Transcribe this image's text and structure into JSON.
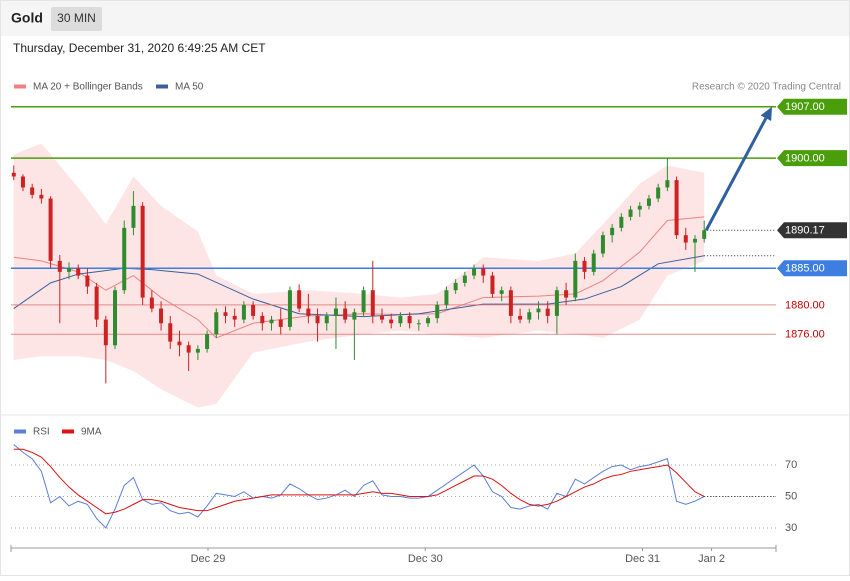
{
  "header": {
    "title": "Gold",
    "timeframe": "30 MIN",
    "timestamp": "Thursday, December 31, 2020 6:49:25 AM CET"
  },
  "chart_data": [
    {
      "type": "candlestick",
      "credit": "Research © 2020 Trading Central",
      "up_color": "#2e8b2e",
      "down_color": "#cc2222",
      "xlim": [
        -0.3,
        82.8
      ],
      "ylim": [
        1865,
        1908.6
      ],
      "candles": [
        [
          1898.0,
          1899.0,
          1897.0,
          1897.5
        ],
        [
          1897.5,
          1897.8,
          1895.5,
          1896.0
        ],
        [
          1896.0,
          1896.5,
          1894.5,
          1895.0
        ],
        [
          1895.0,
          1895.8,
          1893.8,
          1894.5
        ],
        [
          1894.5,
          1894.8,
          1885.0,
          1886.0
        ],
        [
          1886.0,
          1886.8,
          1877.5,
          1884.5
        ],
        [
          1884.5,
          1885.8,
          1883.5,
          1885.0
        ],
        [
          1885.0,
          1885.5,
          1883.5,
          1884.0
        ],
        [
          1884.0,
          1885.0,
          1881.5,
          1882.5
        ],
        [
          1882.5,
          1883.0,
          1877.0,
          1878.0
        ],
        [
          1878.0,
          1878.5,
          1869.3,
          1874.5
        ],
        [
          1874.5,
          1882.5,
          1874.0,
          1882.0
        ],
        [
          1882.0,
          1891.5,
          1881.5,
          1890.5
        ],
        [
          1890.5,
          1895.5,
          1889.5,
          1893.5
        ],
        [
          1893.5,
          1894.0,
          1880.0,
          1881.0
        ],
        [
          1881.0,
          1882.0,
          1879.0,
          1879.5
        ],
        [
          1879.5,
          1880.5,
          1876.5,
          1877.5
        ],
        [
          1877.5,
          1878.5,
          1874.0,
          1875.0
        ],
        [
          1875.0,
          1876.5,
          1873.0,
          1874.5
        ],
        [
          1874.5,
          1875.0,
          1871.0,
          1873.5
        ],
        [
          1873.5,
          1874.5,
          1872.5,
          1874.0
        ],
        [
          1874.0,
          1876.5,
          1873.5,
          1876.0
        ],
        [
          1876.0,
          1879.5,
          1875.5,
          1879.0
        ],
        [
          1879.0,
          1879.8,
          1877.5,
          1878.5
        ],
        [
          1878.5,
          1879.5,
          1877.0,
          1878.0
        ],
        [
          1878.0,
          1880.5,
          1877.5,
          1880.0
        ],
        [
          1880.0,
          1880.5,
          1878.0,
          1878.5
        ],
        [
          1878.5,
          1879.0,
          1876.5,
          1877.5
        ],
        [
          1877.5,
          1878.5,
          1876.5,
          1878.0
        ],
        [
          1878.0,
          1879.5,
          1876.0,
          1877.0
        ],
        [
          1877.0,
          1882.5,
          1876.5,
          1882.0
        ],
        [
          1882.0,
          1882.8,
          1879.0,
          1879.5
        ],
        [
          1879.5,
          1881.5,
          1877.5,
          1878.5
        ],
        [
          1878.5,
          1879.5,
          1875.0,
          1877.5
        ],
        [
          1877.5,
          1879.0,
          1876.5,
          1878.5
        ],
        [
          1878.5,
          1881.0,
          1874.0,
          1879.5
        ],
        [
          1879.5,
          1880.5,
          1877.5,
          1878.0
        ],
        [
          1878.0,
          1879.5,
          1872.5,
          1879.0
        ],
        [
          1879.0,
          1882.5,
          1878.5,
          1882.0
        ],
        [
          1882.0,
          1886.0,
          1877.5,
          1878.5
        ],
        [
          1878.5,
          1879.5,
          1877.5,
          1878.0
        ],
        [
          1878.0,
          1878.8,
          1876.8,
          1877.5
        ],
        [
          1877.5,
          1879.0,
          1877.0,
          1878.5
        ],
        [
          1878.5,
          1879.0,
          1876.8,
          1877.5
        ],
        [
          1877.5,
          1878.0,
          1876.5,
          1877.5
        ],
        [
          1877.5,
          1878.5,
          1877.0,
          1878.2
        ],
        [
          1878.2,
          1880.5,
          1877.5,
          1880.0
        ],
        [
          1880.0,
          1882.5,
          1879.5,
          1882.0
        ],
        [
          1882.0,
          1883.5,
          1881.5,
          1883.0
        ],
        [
          1883.0,
          1884.5,
          1882.5,
          1884.0
        ],
        [
          1884.0,
          1885.5,
          1883.5,
          1885.0
        ],
        [
          1885.0,
          1885.5,
          1883.0,
          1884.0
        ],
        [
          1884.0,
          1884.5,
          1881.0,
          1881.5
        ],
        [
          1881.5,
          1882.5,
          1880.5,
          1882.0
        ],
        [
          1882.0,
          1882.5,
          1877.5,
          1878.5
        ],
        [
          1878.5,
          1879.5,
          1877.5,
          1878.0
        ],
        [
          1878.0,
          1879.5,
          1877.5,
          1879.0
        ],
        [
          1879.0,
          1880.5,
          1878.0,
          1879.5
        ],
        [
          1879.5,
          1880.5,
          1877.5,
          1878.5
        ],
        [
          1878.5,
          1882.5,
          1876.0,
          1882.0
        ],
        [
          1882.0,
          1883.0,
          1880.0,
          1881.0
        ],
        [
          1881.0,
          1887.0,
          1880.5,
          1886.0
        ],
        [
          1886.0,
          1886.5,
          1883.5,
          1884.5
        ],
        [
          1884.5,
          1887.5,
          1884.0,
          1887.0
        ],
        [
          1887.0,
          1890.0,
          1886.5,
          1889.5
        ],
        [
          1889.5,
          1891.0,
          1888.5,
          1890.5
        ],
        [
          1890.5,
          1892.5,
          1890.0,
          1892.0
        ],
        [
          1892.0,
          1893.5,
          1891.5,
          1893.0
        ],
        [
          1893.0,
          1894.0,
          1892.0,
          1893.5
        ],
        [
          1893.5,
          1895.0,
          1893.0,
          1894.5
        ],
        [
          1894.5,
          1896.5,
          1894.0,
          1896.0
        ],
        [
          1896.0,
          1900.0,
          1895.5,
          1897.0
        ],
        [
          1897.0,
          1897.5,
          1889.0,
          1889.5
        ],
        [
          1889.5,
          1890.5,
          1887.5,
          1888.5
        ],
        [
          1888.5,
          1889.5,
          1884.5,
          1889.0
        ],
        [
          1889.0,
          1891.5,
          1888.5,
          1890.17
        ]
      ],
      "bands": {
        "name": "MA 20 + Bollinger Bands",
        "color": "#f08080",
        "fill": "#fde0e0",
        "x": [
          0,
          3,
          7,
          10,
          13,
          16,
          20,
          22,
          26,
          32,
          38,
          42,
          46,
          51,
          57,
          61,
          64,
          68,
          71,
          75
        ],
        "upper": [
          1900.5,
          1902.0,
          1896.0,
          1891.0,
          1897.5,
          1893.5,
          1890.0,
          1884.0,
          1881.5,
          1882.0,
          1881.5,
          1881.0,
          1881.5,
          1886.5,
          1886.0,
          1887.0,
          1891.0,
          1896.5,
          1899.0,
          1898.0
        ],
        "middle": [
          1886.5,
          1886.0,
          1884.5,
          1882.0,
          1884.0,
          1881.0,
          1878.0,
          1875.5,
          1877.5,
          1878.5,
          1878.8,
          1878.7,
          1878.8,
          1881.0,
          1881.2,
          1881.5,
          1883.3,
          1887.2,
          1891.5,
          1892.0
        ],
        "lower": [
          1872.5,
          1873.0,
          1873.0,
          1872.5,
          1871.0,
          1868.5,
          1866.0,
          1866.5,
          1873.5,
          1875.0,
          1876.0,
          1876.5,
          1876.0,
          1875.5,
          1876.5,
          1876.0,
          1875.5,
          1878.0,
          1884.0,
          1886.0
        ]
      },
      "ma50": {
        "name": "MA 50",
        "color": "#3a5f9f",
        "x": [
          0,
          4,
          7,
          12,
          15,
          20,
          26,
          31,
          38,
          44,
          51,
          58,
          62,
          66,
          70,
          75
        ],
        "values": [
          1879.5,
          1883.0,
          1884.2,
          1885.0,
          1884.8,
          1884.2,
          1880.8,
          1878.8,
          1878.4,
          1878.8,
          1880.1,
          1880.1,
          1880.8,
          1882.5,
          1885.6,
          1886.7
        ]
      },
      "levels": [
        {
          "value": 1907,
          "label": "1907.00",
          "color": "#4a9e0b",
          "line": "solid",
          "style": "box"
        },
        {
          "value": 1900,
          "label": "1900.00",
          "color": "#4a9e0b",
          "line": "solid",
          "style": "box"
        },
        {
          "value": 1890.17,
          "label": "1890.17",
          "color": "#333333",
          "line": "dotted",
          "style": "box"
        },
        {
          "value": 1885,
          "label": "1885.00",
          "color": "#3d7fe0",
          "line": "solid",
          "style": "box"
        },
        {
          "value": 1880,
          "label": "1880.00",
          "color": "#e07070",
          "line": "solid",
          "style": "text"
        },
        {
          "value": 1876,
          "label": "1876.00",
          "color": "#e07070",
          "line": "solid",
          "style": "text"
        }
      ]
    },
    {
      "type": "line",
      "xlim": [
        -0.3,
        82.8
      ],
      "ylim": [
        19.2,
        95.4
      ],
      "yticks": [
        30,
        50,
        70
      ],
      "grid": true,
      "xticks": [
        {
          "value": 21.1,
          "label": "Dec 29"
        },
        {
          "value": 44.7,
          "label": "Dec 30"
        },
        {
          "value": 68.3,
          "label": "Dec 31"
        },
        {
          "value": 75.8,
          "label": "Jan 2"
        }
      ],
      "series": [
        {
          "name": "RSI",
          "color": "#5b7fd6",
          "values": [
            83,
            78,
            74,
            66,
            46,
            50,
            44,
            47,
            45,
            36,
            30,
            42,
            57,
            62,
            48,
            45,
            46,
            41,
            39,
            40,
            37,
            44,
            52,
            51,
            50,
            53,
            49,
            50,
            49,
            51,
            58,
            55,
            51,
            48,
            49,
            51,
            54,
            50,
            57,
            60,
            51,
            50,
            50,
            49,
            49,
            50,
            54,
            58,
            62,
            66,
            70,
            63,
            53,
            50,
            43,
            42,
            44,
            45,
            42,
            52,
            50,
            61,
            58,
            62,
            66,
            69,
            70,
            67,
            69,
            70,
            72,
            74,
            47,
            45,
            47,
            50
          ]
        },
        {
          "name": "9MA",
          "color": "#dd1111",
          "values": [
            80,
            80,
            78,
            75,
            69,
            62,
            56,
            51,
            47,
            43,
            39,
            40,
            42,
            45,
            48,
            48,
            47,
            45,
            43,
            42,
            41,
            41,
            43,
            45,
            47,
            48,
            49,
            50,
            51,
            51,
            51,
            51,
            51,
            51,
            51,
            51,
            51,
            51,
            52,
            53,
            52,
            52,
            51,
            50,
            50,
            50,
            51,
            54,
            57,
            60,
            63,
            63,
            61,
            57,
            52,
            48,
            45,
            44,
            45,
            47,
            50,
            53,
            56,
            58,
            61,
            63,
            64,
            66,
            67,
            68,
            69,
            70,
            65,
            59,
            53,
            50
          ]
        }
      ]
    }
  ]
}
